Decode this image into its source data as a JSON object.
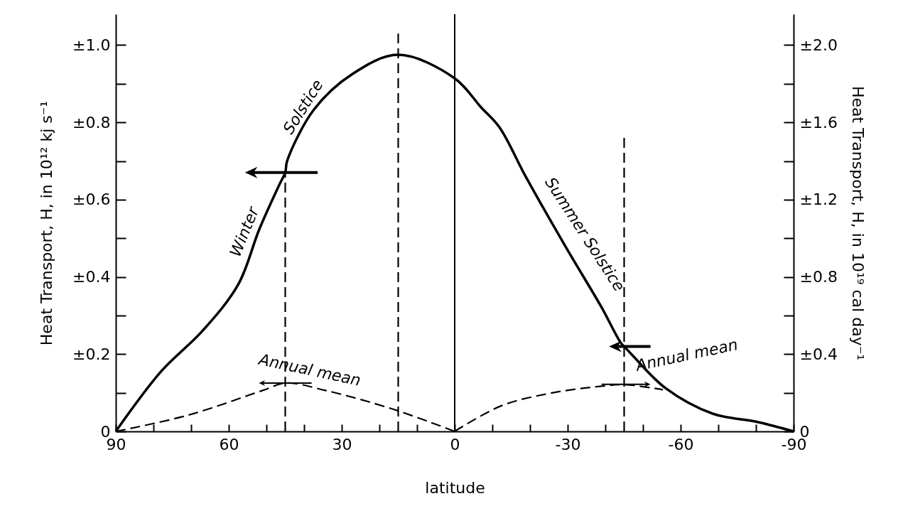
{
  "chart_data": {
    "type": "line",
    "xlabel": "latitude",
    "ylabel": "Heat Transport, H, in 10¹² kj s⁻¹",
    "y2label": "Heat Transport, H, in 10¹⁹ cal day⁻¹",
    "xlim": [
      90,
      -90
    ],
    "xticks": [
      90,
      {
        "value": 80,
        "label": null
      },
      {
        "value": 70,
        "label": null
      },
      60,
      {
        "value": 50,
        "label": null
      },
      {
        "value": 40,
        "label": null
      },
      30,
      {
        "value": 20,
        "label": null
      },
      {
        "value": 10,
        "label": null
      },
      0,
      {
        "value": -10,
        "label": null
      },
      {
        "value": -20,
        "label": null
      },
      -30,
      {
        "value": -40,
        "label": null
      },
      {
        "value": -50,
        "label": null
      },
      -60,
      {
        "value": -70,
        "label": null
      },
      {
        "value": -80,
        "label": null
      },
      -90
    ],
    "ylim": [
      0,
      1.08
    ],
    "yticks": [
      0,
      {
        "value": 0.1,
        "label": null
      },
      {
        "value": 0.2,
        "label": "±0.2"
      },
      {
        "value": 0.3,
        "label": null
      },
      {
        "value": 0.4,
        "label": "±0.4"
      },
      {
        "value": 0.5,
        "label": null
      },
      {
        "value": 0.6,
        "label": "±0.6"
      },
      {
        "value": 0.7,
        "label": null
      },
      {
        "value": 0.8,
        "label": "±0.8"
      },
      {
        "value": 0.9,
        "label": null
      },
      {
        "value": 1.0,
        "label": "±1.0"
      }
    ],
    "y2lim": [
      0,
      2.16
    ],
    "y2ticks": [
      0,
      {
        "value": 0.2,
        "label": null
      },
      {
        "value": 0.4,
        "label": "±0.4"
      },
      {
        "value": 0.6,
        "label": null
      },
      {
        "value": 0.8,
        "label": "±0.8"
      },
      {
        "value": 1.0,
        "label": null
      },
      {
        "value": 1.2,
        "label": "±1.2"
      },
      {
        "value": 1.4,
        "label": null
      },
      {
        "value": 1.6,
        "label": "±1.6"
      },
      {
        "value": 1.8,
        "label": null
      },
      {
        "value": 2.0,
        "label": "±2.0"
      }
    ],
    "grid": false,
    "series": [
      {
        "color": "#000000",
        "line_style": "solid",
        "x": [
          90,
          77.9,
          67,
          57.5,
          51.9,
          46.4,
          45,
          44.5,
          37.4,
          27.2,
          15,
          0,
          -7,
          -11.9,
          -18.9,
          -29.4,
          -38.9,
          -44.2,
          -45.5,
          -47.4,
          -56,
          -68.5,
          -80.6,
          -90
        ],
        "values": [
          0,
          0.156,
          0.26,
          0.38,
          0.523,
          0.642,
          0.67,
          0.7,
          0.833,
          0.925,
          0.975,
          0.914,
          0.839,
          0.787,
          0.659,
          0.479,
          0.323,
          0.228,
          0.215,
          0.195,
          0.112,
          0.046,
          0.024,
          0
        ]
      },
      {
        "color": "#000000",
        "line_style": "dashed",
        "x": [
          90,
          70.8,
          51,
          45,
          34.3,
          16.2,
          0
        ],
        "values": [
          0,
          0.042,
          0.106,
          0.125,
          0.106,
          0.057,
          0
        ]
      },
      {
        "color": "#000000",
        "line_style": "dashed",
        "x": [
          0,
          -12.3,
          -25.5,
          -38.9,
          -45,
          -55.3
        ],
        "values": [
          0,
          0.066,
          0.099,
          0.117,
          0.121,
          0.108
        ]
      },
      {
        "color": "#000000",
        "line_style": "dashed",
        "x": [
          45,
          45
        ],
        "values": [
          0,
          0.67
        ]
      },
      {
        "color": "#000000",
        "line_style": "dashed",
        "x": [
          15,
          15
        ],
        "values": [
          0,
          1.03
        ]
      },
      {
        "color": "#000000",
        "line_style": "dashed",
        "x": [
          -45,
          -45
        ],
        "values": [
          0,
          0.76
        ]
      }
    ],
    "ref_lines": [
      {
        "axis": "x",
        "value": 0,
        "color": "#000000",
        "line_style": "solid"
      }
    ],
    "annotations": [
      "Winter",
      "Solstice",
      "Summer Solstice",
      {
        "text": "Annual mean",
        "x": 45,
        "y": 0.125
      },
      {
        "text": "Annual mean",
        "x": -45,
        "y": 0.121
      }
    ]
  }
}
